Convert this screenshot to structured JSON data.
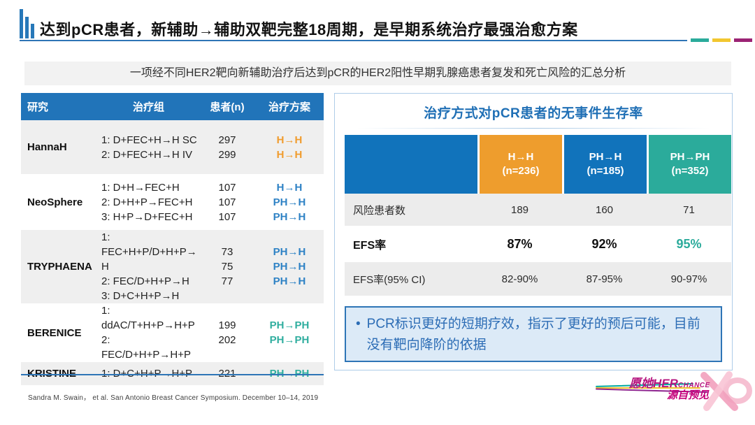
{
  "colors": {
    "blue": "#2E82C5",
    "orange": "#F09C2E",
    "teal": "#30AE9F",
    "table_header_blue": "#2174B9",
    "efs_header_blue": "#1173BB",
    "efs_highlight": "#2BAB9B",
    "accent_line": "#2E75B6",
    "dash_teal": "#2BAB9B",
    "dash_yellow": "#F2C730",
    "dash_purple": "#9B2374",
    "logo_stripes": [
      "#00A89C",
      "#F0C12F",
      "#8E2590"
    ]
  },
  "header": {
    "title": "达到pCR患者，新辅助→辅助双靶完整18周期，是早期系统治疗最强治愈方案"
  },
  "subtitle": "一项经不同HER2靶向新辅助治疗后达到pCR的HER2阳性早期乳腺癌患者复发和死亡风险的汇总分析",
  "left_table": {
    "columns": [
      "研究",
      "治疗组",
      "患者(n)",
      "治疗方案"
    ],
    "rows": [
      {
        "study": "HannaH",
        "groups": [
          "1: D+FEC+H→H SC",
          "2: D+FEC+H→H IV"
        ],
        "patients": [
          "297",
          "299"
        ],
        "schemes": [
          {
            "text": "H→H",
            "color": "orange"
          },
          {
            "text": "H→H",
            "color": "orange"
          }
        ],
        "shade": true
      },
      {
        "study": "NeoSphere",
        "groups": [
          "1: D+H→FEC+H",
          "2: D+H+P→FEC+H",
          "3: H+P→D+FEC+H"
        ],
        "patients": [
          "107",
          "107",
          "107"
        ],
        "schemes": [
          {
            "text": "H→H",
            "color": "blue"
          },
          {
            "text": "PH→H",
            "color": "blue"
          },
          {
            "text": "PH→H",
            "color": "blue"
          }
        ],
        "shade": false
      },
      {
        "study": "TRYPHAENA",
        "groups": [
          "1:",
          "FEC+H+P/D+H+P→",
          "H",
          "2: FEC/D+H+P→H",
          "3: D+C+H+P→H"
        ],
        "patients": [
          "73",
          "75",
          "77"
        ],
        "schemes": [
          {
            "text": "PH→H",
            "color": "blue"
          },
          {
            "text": "PH→H",
            "color": "blue"
          },
          {
            "text": "PH→H",
            "color": "blue"
          }
        ],
        "shade": true
      },
      {
        "study": "BERENICE",
        "groups": [
          "1:",
          "ddAC/T+H+P→H+P",
          "2: FEC/D+H+P→H+P"
        ],
        "patients": [
          "199",
          "202"
        ],
        "schemes": [
          {
            "text": "PH→PH",
            "color": "teal"
          },
          {
            "text": "PH→PH",
            "color": "teal"
          }
        ],
        "shade": false
      },
      {
        "study": "KRISTINE",
        "groups": [
          "1: D+C+H+P→H+P"
        ],
        "patients": [
          "221"
        ],
        "schemes": [
          {
            "text": "PH→PH",
            "color": "teal"
          }
        ],
        "shade": true
      }
    ]
  },
  "right_panel": {
    "title": "治疗方式对pCR患者的无事件生存率",
    "efs_table": {
      "columns": [
        {
          "label": "H→H",
          "sub": "(n=236)",
          "color": "#EE9D2D"
        },
        {
          "label": "PH→H",
          "sub": "(n=185)",
          "color": "#1173BB"
        },
        {
          "label": "PH→PH",
          "sub": "(n=352)",
          "color": "#2BAB9B"
        }
      ],
      "rows": [
        {
          "label": "风险患者数",
          "values": [
            "189",
            "160",
            "71"
          ],
          "style": "normal",
          "highlight_last": false
        },
        {
          "label": "EFS率",
          "values": [
            "87%",
            "92%",
            "95%"
          ],
          "style": "emphasis",
          "highlight_last": true
        },
        {
          "label": "EFS率(95% CI)",
          "values": [
            "82-90%",
            "87-95%",
            "90-97%"
          ],
          "style": "normal",
          "highlight_last": false
        }
      ]
    },
    "callout": {
      "bullet": "•",
      "text": "PCR标识更好的短期疗效，指示了更好的预后可能，目前没有靶向降阶的依据"
    }
  },
  "footer": {
    "citation": "Sandra M. Swain，  et al. San Antonio Breast Cancer Symposium. December 10–14, 2019",
    "logo": {
      "line1_cn": "愿她",
      "line1_en": "HER",
      "line1_tag": "CHANCE",
      "line2": "源自预见"
    }
  }
}
